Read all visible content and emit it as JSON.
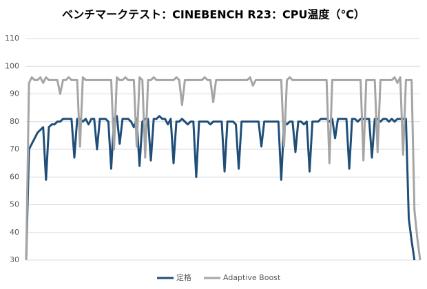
{
  "chart_data": {
    "type": "line",
    "title": "ベンチマークテスト：CINEBENCH R23：CPU温度（℃）",
    "ylim": [
      30,
      110
    ],
    "yticks": [
      30,
      40,
      50,
      60,
      70,
      80,
      90,
      100,
      110
    ],
    "grid": true,
    "legend": "bottom",
    "series": [
      {
        "name": "定格",
        "color": "#1f4e79",
        "values": [
          30,
          70,
          72,
          74,
          76,
          77,
          78,
          59,
          78,
          79,
          79,
          80,
          80,
          81,
          81,
          81,
          81,
          67,
          81,
          81,
          80,
          81,
          79,
          81,
          81,
          70,
          81,
          81,
          81,
          80,
          63,
          81,
          82,
          72,
          81,
          81,
          81,
          80,
          78,
          81,
          64,
          80,
          81,
          81,
          66,
          81,
          81,
          82,
          81,
          81,
          79,
          81,
          65,
          80,
          80,
          81,
          80,
          79,
          80,
          80,
          60,
          80,
          80,
          80,
          80,
          79,
          80,
          80,
          80,
          80,
          62,
          80,
          80,
          80,
          79,
          63,
          80,
          80,
          80,
          80,
          80,
          80,
          80,
          71,
          80,
          80,
          80,
          80,
          80,
          80,
          59,
          80,
          79,
          80,
          80,
          69,
          80,
          80,
          79,
          80,
          62,
          80,
          80,
          80,
          81,
          81,
          81,
          80,
          81,
          74,
          81,
          81,
          81,
          81,
          63,
          81,
          81,
          80,
          81,
          81,
          81,
          81,
          67,
          81,
          81,
          80,
          81,
          81,
          80,
          81,
          80,
          81,
          81,
          81,
          81,
          45,
          37,
          30,
          null,
          null
        ]
      },
      {
        "name": "Adaptive Boost",
        "color": "#a5a5a5",
        "values": [
          30,
          94,
          96,
          95,
          95,
          96,
          94,
          96,
          95,
          95,
          95,
          95,
          90,
          95,
          95,
          96,
          95,
          95,
          95,
          71,
          96,
          95,
          95,
          95,
          95,
          95,
          95,
          95,
          95,
          95,
          95,
          70,
          96,
          95,
          95,
          96,
          95,
          95,
          95,
          71,
          96,
          95,
          67,
          95,
          95,
          96,
          95,
          95,
          95,
          95,
          95,
          95,
          95,
          96,
          95,
          86,
          95,
          95,
          95,
          95,
          95,
          95,
          95,
          96,
          95,
          95,
          87,
          95,
          95,
          95,
          95,
          95,
          95,
          95,
          95,
          95,
          95,
          95,
          95,
          96,
          93,
          95,
          95,
          95,
          95,
          95,
          95,
          95,
          95,
          95,
          95,
          71,
          95,
          96,
          95,
          95,
          95,
          95,
          95,
          95,
          95,
          95,
          95,
          95,
          95,
          95,
          95,
          65,
          95,
          95,
          95,
          95,
          95,
          95,
          95,
          95,
          95,
          95,
          95,
          66,
          95,
          95,
          95,
          95,
          69,
          95,
          95,
          95,
          95,
          95,
          96,
          94,
          96,
          68,
          95,
          95,
          95,
          48,
          38,
          30
        ]
      }
    ]
  }
}
